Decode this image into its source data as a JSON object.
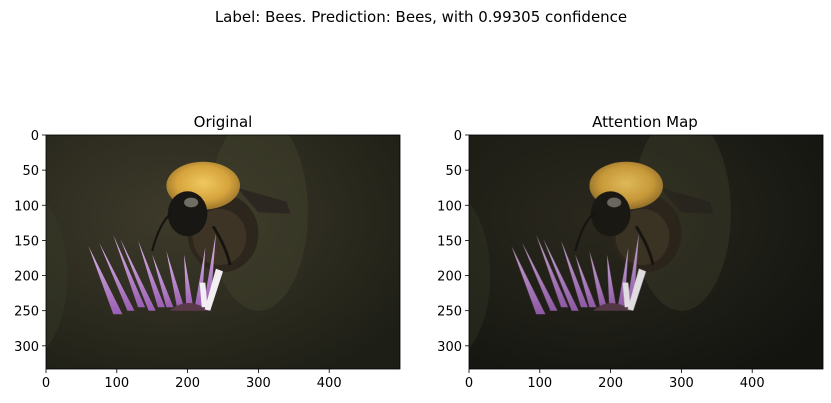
{
  "figure": {
    "suptitle": "Label: Bees. Prediction: Bees, with 0.99305 confidence"
  },
  "chart_data": [
    {
      "type": "image",
      "title": "Original",
      "image_subject": "bumblebee on purple thistle flower",
      "image_shape": [
        333,
        500
      ],
      "xlim": [
        0,
        500
      ],
      "ylim": [
        333,
        0
      ],
      "xticks": [
        0,
        100,
        200,
        300,
        400
      ],
      "yticks": [
        0,
        50,
        100,
        150,
        200,
        250,
        300
      ],
      "grid": false
    },
    {
      "type": "image",
      "title": "Attention Map",
      "image_subject": "bumblebee on purple thistle flower, darker background",
      "image_shape": [
        333,
        500
      ],
      "xlim": [
        0,
        500
      ],
      "ylim": [
        333,
        0
      ],
      "xticks": [
        0,
        100,
        200,
        300,
        400
      ],
      "yticks": [
        0,
        50,
        100,
        150,
        200,
        250,
        300
      ],
      "grid": false
    }
  ]
}
